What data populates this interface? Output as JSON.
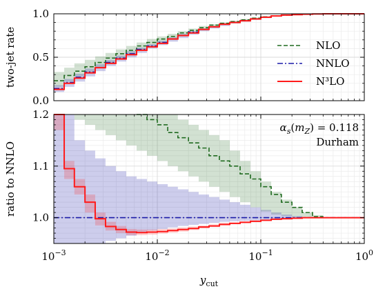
{
  "chart_data": [
    {
      "type": "line",
      "xscale": "log",
      "xlim": [
        0.001,
        1
      ],
      "ylim": [
        0.0,
        1.0
      ],
      "ylabel": "two-jet rate",
      "xlabel": "",
      "grid": true,
      "yticks": [
        0.0,
        0.5,
        1.0
      ],
      "ytick_labels": [
        "0.0",
        "0.5",
        "1.0"
      ],
      "legend": {
        "placement": "right",
        "entries": [
          {
            "label": "NLO",
            "color": "#1f6a1f",
            "style": "dashed"
          },
          {
            "label": "NNLO",
            "color": "#1a1aa8",
            "style": "dashdot"
          },
          {
            "label": "N³LO",
            "color": "#ff1a1a",
            "style": "solid"
          }
        ]
      },
      "x": [
        0.001,
        0.00126,
        0.00158,
        0.002,
        0.00251,
        0.00316,
        0.00398,
        0.00501,
        0.00631,
        0.00794,
        0.01,
        0.0126,
        0.0158,
        0.02,
        0.0251,
        0.0316,
        0.0398,
        0.0501,
        0.0631,
        0.0794,
        0.1,
        0.126,
        0.158,
        0.2,
        0.251,
        0.316,
        0.398,
        0.501,
        0.631,
        0.794,
        1.0
      ],
      "series": [
        {
          "name": "NLO",
          "color": "#1f6a1f",
          "style": "dashed",
          "values": [
            0.23,
            0.29,
            0.34,
            0.39,
            0.44,
            0.49,
            0.54,
            0.58,
            0.63,
            0.67,
            0.71,
            0.74,
            0.78,
            0.81,
            0.84,
            0.87,
            0.89,
            0.91,
            0.93,
            0.95,
            0.965,
            0.975,
            0.985,
            0.99,
            0.995,
            0.998,
            1.0,
            1.0,
            1.0,
            1.0,
            1.0
          ],
          "band_low": [
            0.16,
            0.22,
            0.28,
            0.33,
            0.38,
            0.43,
            0.48,
            0.53,
            0.58,
            0.62,
            0.66,
            0.7,
            0.74,
            0.77,
            0.81,
            0.84,
            0.87,
            0.89,
            0.91,
            0.94,
            0.955,
            0.97,
            0.98,
            0.99,
            0.995,
            0.998,
            1.0,
            1.0,
            1.0,
            1.0,
            1.0
          ],
          "band_high": [
            0.33,
            0.38,
            0.43,
            0.47,
            0.51,
            0.55,
            0.59,
            0.63,
            0.67,
            0.71,
            0.74,
            0.77,
            0.8,
            0.83,
            0.86,
            0.88,
            0.9,
            0.92,
            0.94,
            0.955,
            0.97,
            0.98,
            0.99,
            0.995,
            1.0,
            1.0,
            1.0,
            1.0,
            1.0,
            1.0,
            1.0
          ]
        },
        {
          "name": "NNLO",
          "color": "#1a1aa8",
          "style": "dashdot",
          "values": [
            0.14,
            0.21,
            0.27,
            0.33,
            0.38,
            0.44,
            0.49,
            0.54,
            0.59,
            0.63,
            0.67,
            0.71,
            0.75,
            0.79,
            0.82,
            0.85,
            0.88,
            0.9,
            0.92,
            0.94,
            0.96,
            0.975,
            0.985,
            0.99,
            0.995,
            0.998,
            1.0,
            1.0,
            1.0,
            1.0,
            1.0
          ],
          "band_low": [
            0.1,
            0.16,
            0.22,
            0.28,
            0.34,
            0.4,
            0.45,
            0.5,
            0.55,
            0.6,
            0.64,
            0.68,
            0.72,
            0.76,
            0.8,
            0.83,
            0.86,
            0.89,
            0.91,
            0.93,
            0.95,
            0.97,
            0.98,
            0.99,
            0.995,
            0.998,
            1.0,
            1.0,
            1.0,
            1.0,
            1.0
          ],
          "band_high": [
            0.18,
            0.25,
            0.31,
            0.37,
            0.42,
            0.47,
            0.52,
            0.57,
            0.61,
            0.65,
            0.69,
            0.73,
            0.77,
            0.8,
            0.83,
            0.86,
            0.89,
            0.91,
            0.93,
            0.95,
            0.965,
            0.98,
            0.99,
            0.995,
            1.0,
            1.0,
            1.0,
            1.0,
            1.0,
            1.0,
            1.0
          ]
        },
        {
          "name": "N³LO",
          "color": "#ff1a1a",
          "style": "solid",
          "values": [
            0.13,
            0.2,
            0.26,
            0.32,
            0.38,
            0.43,
            0.48,
            0.53,
            0.58,
            0.62,
            0.66,
            0.71,
            0.75,
            0.78,
            0.82,
            0.85,
            0.88,
            0.9,
            0.92,
            0.94,
            0.96,
            0.975,
            0.985,
            0.99,
            0.995,
            0.998,
            1.0,
            1.0,
            1.0,
            1.0,
            1.0
          ],
          "band_low": [
            0.12,
            0.19,
            0.25,
            0.31,
            0.37,
            0.42,
            0.47,
            0.52,
            0.57,
            0.61,
            0.65,
            0.7,
            0.74,
            0.78,
            0.81,
            0.84,
            0.87,
            0.9,
            0.92,
            0.94,
            0.955,
            0.97,
            0.98,
            0.99,
            0.995,
            0.998,
            1.0,
            1.0,
            1.0,
            1.0,
            1.0
          ],
          "band_high": [
            0.15,
            0.21,
            0.27,
            0.33,
            0.39,
            0.44,
            0.49,
            0.54,
            0.59,
            0.63,
            0.67,
            0.72,
            0.76,
            0.79,
            0.83,
            0.86,
            0.89,
            0.91,
            0.93,
            0.95,
            0.965,
            0.98,
            0.99,
            0.995,
            1.0,
            1.0,
            1.0,
            1.0,
            1.0,
            1.0,
            1.0
          ]
        }
      ]
    },
    {
      "type": "line",
      "xscale": "log",
      "xlim": [
        0.001,
        1
      ],
      "ylim": [
        0.95,
        1.2
      ],
      "ylabel": "ratio to NNLO",
      "xlabel": "y_cut",
      "grid": true,
      "yticks": [
        1.0,
        1.1,
        1.2
      ],
      "ytick_labels": [
        "1.0",
        "1.1",
        "1.2"
      ],
      "xticks": [
        0.001,
        0.01,
        0.1,
        1
      ],
      "xtick_labels": [
        {
          "base": "10",
          "exp": "−3"
        },
        {
          "base": "10",
          "exp": "−2"
        },
        {
          "base": "10",
          "exp": "−1"
        },
        {
          "base": "10",
          "exp": "0"
        }
      ],
      "annotations": [
        {
          "text": "α_s(m_Z) = 0.118",
          "placement": "top-right"
        },
        {
          "text": "Durham",
          "placement": "top-right"
        }
      ],
      "x": [
        0.001,
        0.00126,
        0.00158,
        0.002,
        0.00251,
        0.00316,
        0.00398,
        0.00501,
        0.00631,
        0.00794,
        0.01,
        0.0126,
        0.0158,
        0.02,
        0.0251,
        0.0316,
        0.0398,
        0.0501,
        0.0631,
        0.0794,
        0.1,
        0.126,
        0.158,
        0.2,
        0.251,
        0.316,
        0.398,
        0.501,
        0.631,
        0.794,
        1.0
      ],
      "series": [
        {
          "name": "NLO",
          "color": "#1f6a1f",
          "style": "dashed",
          "values": [
            null,
            null,
            null,
            null,
            null,
            null,
            null,
            null,
            1.2,
            1.19,
            1.18,
            1.165,
            1.155,
            1.145,
            1.135,
            1.12,
            1.11,
            1.1,
            1.085,
            1.075,
            1.06,
            1.045,
            1.03,
            1.02,
            1.01,
            1.002,
            1.0,
            1.0,
            1.0,
            1.0,
            1.0
          ],
          "band_low": [
            1.2,
            1.2,
            1.19,
            1.18,
            1.17,
            1.16,
            1.15,
            1.14,
            1.13,
            1.12,
            1.11,
            1.1,
            1.09,
            1.08,
            1.07,
            1.06,
            1.05,
            1.04,
            1.03,
            1.02,
            1.012,
            1.006,
            1.003,
            1.001,
            1.0,
            1.0,
            1.0,
            1.0,
            1.0,
            1.0,
            1.0
          ],
          "band_high": [
            1.2,
            1.2,
            1.2,
            1.2,
            1.2,
            1.2,
            1.2,
            1.2,
            1.2,
            1.2,
            1.2,
            1.2,
            1.19,
            1.18,
            1.17,
            1.16,
            1.15,
            1.13,
            1.11,
            1.09,
            1.07,
            1.05,
            1.035,
            1.02,
            1.01,
            1.005,
            1.0,
            1.0,
            1.0,
            1.0,
            1.0
          ]
        },
        {
          "name": "NNLO",
          "color": "#1a1aa8",
          "style": "dashdot",
          "values": [
            1.0,
            1.0,
            1.0,
            1.0,
            1.0,
            1.0,
            1.0,
            1.0,
            1.0,
            1.0,
            1.0,
            1.0,
            1.0,
            1.0,
            1.0,
            1.0,
            1.0,
            1.0,
            1.0,
            1.0,
            1.0,
            1.0,
            1.0,
            1.0,
            1.0,
            1.0,
            1.0,
            1.0,
            1.0,
            1.0,
            1.0
          ],
          "band_low": [
            0.95,
            0.95,
            0.95,
            0.95,
            0.95,
            0.955,
            0.96,
            0.965,
            0.97,
            0.975,
            0.978,
            0.981,
            0.984,
            0.986,
            0.988,
            0.99,
            0.992,
            0.993,
            0.994,
            0.995,
            0.996,
            0.997,
            0.998,
            0.999,
            1.0,
            1.0,
            1.0,
            1.0,
            1.0,
            1.0,
            1.0
          ],
          "band_high": [
            1.2,
            1.2,
            1.15,
            1.13,
            1.115,
            1.1,
            1.09,
            1.08,
            1.075,
            1.07,
            1.065,
            1.06,
            1.055,
            1.05,
            1.045,
            1.04,
            1.035,
            1.03,
            1.025,
            1.02,
            1.015,
            1.01,
            1.006,
            1.003,
            1.001,
            1.0,
            1.0,
            1.0,
            1.0,
            1.0,
            1.0
          ]
        },
        {
          "name": "N³LO",
          "color": "#ff1a1a",
          "style": "solid",
          "values": [
            1.2,
            1.095,
            1.06,
            1.03,
            0.998,
            0.983,
            0.977,
            0.972,
            0.971,
            0.972,
            0.973,
            0.975,
            0.977,
            0.979,
            0.982,
            0.984,
            0.987,
            0.989,
            0.991,
            0.993,
            0.995,
            0.997,
            0.998,
            0.999,
            1.0,
            1.0,
            1.0,
            1.0,
            1.0,
            1.0,
            1.0
          ],
          "band_low": [
            1.17,
            1.075,
            1.045,
            1.01,
            0.985,
            0.975,
            0.97,
            0.966,
            0.966,
            0.967,
            0.969,
            0.971,
            0.973,
            0.976,
            0.979,
            0.982,
            0.985,
            0.988,
            0.99,
            0.992,
            0.994,
            0.996,
            0.997,
            0.998,
            0.999,
            1.0,
            1.0,
            1.0,
            1.0,
            1.0,
            1.0
          ],
          "band_high": [
            1.2,
            1.11,
            1.075,
            1.045,
            1.01,
            0.992,
            0.984,
            0.978,
            0.977,
            0.977,
            0.978,
            0.979,
            0.981,
            0.983,
            0.985,
            0.987,
            0.99,
            0.991,
            0.993,
            0.995,
            0.996,
            0.998,
            0.999,
            1.0,
            1.0,
            1.0,
            1.0,
            1.0,
            1.0,
            1.0,
            1.0
          ]
        }
      ]
    }
  ]
}
